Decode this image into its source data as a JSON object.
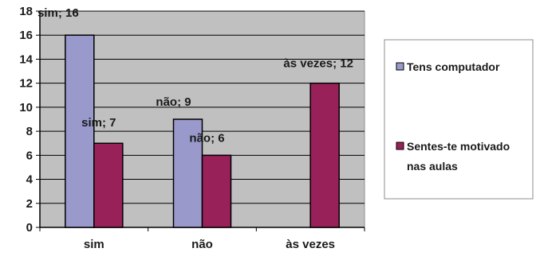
{
  "chart_data": {
    "type": "bar",
    "categories": [
      "sim",
      "não",
      "às vezes"
    ],
    "series": [
      {
        "name": "Tens computador",
        "values": [
          16,
          9,
          null
        ],
        "data_labels": [
          "sim; 16",
          "não; 9",
          ""
        ],
        "color": "#9999cc"
      },
      {
        "name": "Sentes-te motivado nas aulas",
        "name_lines": [
          "Sentes-te motivado",
          "nas aulas"
        ],
        "values": [
          7,
          6,
          12
        ],
        "data_labels": [
          "sim; 7",
          "não; 6",
          "às vezes; 12"
        ],
        "color": "#99215a"
      }
    ],
    "ylim": [
      0,
      18
    ],
    "y_ticks": [
      "0",
      "2",
      "4",
      "6",
      "8",
      "10",
      "12",
      "14",
      "16",
      "18"
    ],
    "plot_background": "#c0c0c0",
    "grid": true,
    "legend_position": "right",
    "title": "",
    "xlabel": "",
    "ylabel": ""
  }
}
